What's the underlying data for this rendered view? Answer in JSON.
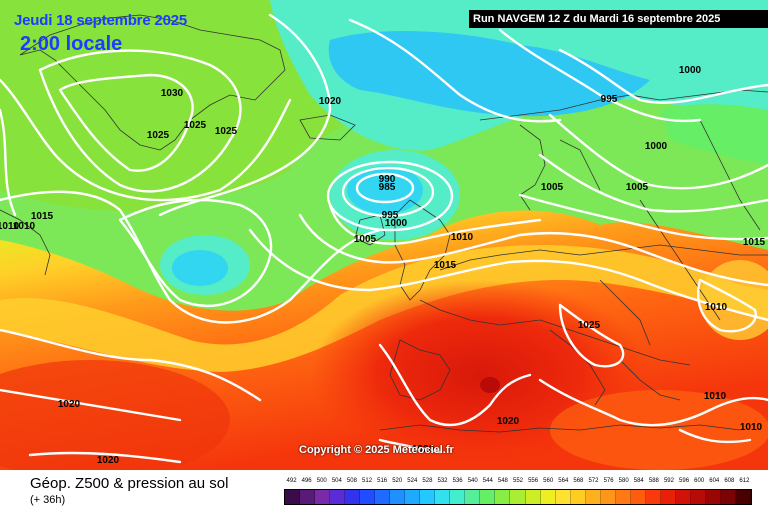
{
  "header": {
    "date": "Jeudi 18 septembre 2025",
    "time": "2:00 locale",
    "run": "Run NAVGEM 12 Z du Mardi 16 septembre 2025"
  },
  "copyright": "Copyright © 2025 Meteociel.fr",
  "footer": {
    "title": "Géop. Z500 & pression au sol",
    "subtitle": "(+ 36h)"
  },
  "legend": {
    "values": [
      "492",
      "496",
      "500",
      "504",
      "508",
      "512",
      "516",
      "520",
      "524",
      "528",
      "532",
      "536",
      "540",
      "544",
      "548",
      "552",
      "556",
      "560",
      "564",
      "568",
      "572",
      "576",
      "580",
      "584",
      "588",
      "592",
      "596",
      "600",
      "604",
      "608",
      "612"
    ],
    "colors": [
      "#3b0b4a",
      "#5a1a78",
      "#7a2aa8",
      "#5b2bd8",
      "#3333ee",
      "#1f4dff",
      "#1e6bff",
      "#1e90ff",
      "#1eaaff",
      "#22c8ff",
      "#33e0ee",
      "#44eecc",
      "#55ee99",
      "#66ee66",
      "#88ee44",
      "#aaee33",
      "#ccee22",
      "#eeee22",
      "#ffe033",
      "#ffcc22",
      "#ffb01f",
      "#ff961a",
      "#ff7a15",
      "#ff5c10",
      "#f83a0c",
      "#e8200a",
      "#d01208",
      "#b80a06",
      "#9a0505",
      "#7a0303",
      "#4a0000"
    ]
  },
  "isobars": [
    {
      "text": "1030"
    },
    {
      "text": "1025"
    },
    {
      "text": "1025"
    },
    {
      "text": "1025"
    },
    {
      "text": "1020"
    },
    {
      "text": "1000"
    },
    {
      "text": "995"
    },
    {
      "text": "1000"
    },
    {
      "text": "1005"
    },
    {
      "text": "1005"
    },
    {
      "text": "990"
    },
    {
      "text": "985"
    },
    {
      "text": "995"
    },
    {
      "text": "1000"
    },
    {
      "text": "1005"
    },
    {
      "text": "1010"
    },
    {
      "text": "1015"
    },
    {
      "text": "1015"
    },
    {
      "text": "1010"
    },
    {
      "text": "1010"
    },
    {
      "text": "1025"
    },
    {
      "text": "1015"
    },
    {
      "text": "1010"
    },
    {
      "text": "1010"
    },
    {
      "text": "1010"
    },
    {
      "text": "1020"
    },
    {
      "text": "1020"
    },
    {
      "text": "1020"
    },
    {
      "text": "1020"
    }
  ]
}
